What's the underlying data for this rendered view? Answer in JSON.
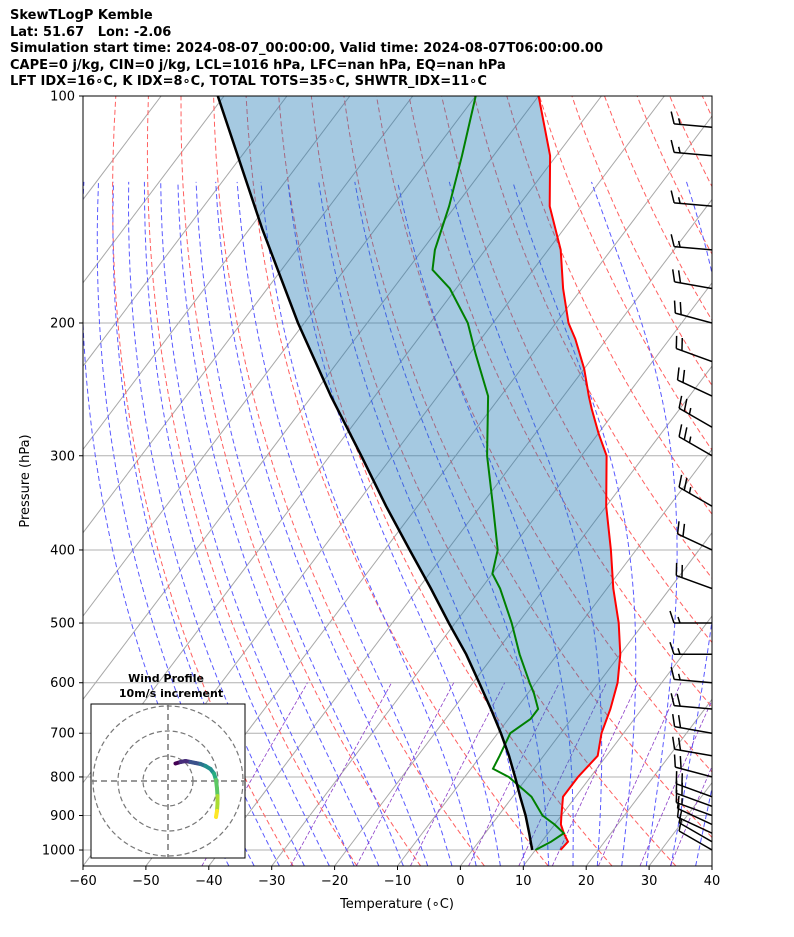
{
  "header": {
    "line1": "SkewTLogP Kemble",
    "line2": "Lat: 51.67   Lon: -2.06",
    "line3": "Simulation start time: 2024-08-07_00:00:00, Valid time: 2024-08-07T06:00:00.00",
    "line4": "CAPE=0 j/kg, CIN=0 j/kg, LCL=1016 hPa, LFC=nan hPa, EQ=nan hPa",
    "line5": "LFT IDX=16∘C, K IDX=8∘C, TOTAL TOTS=35∘C, SHWTR_IDX=11∘C"
  },
  "chart_data": {
    "type": "skew-t",
    "xlabel": "Temperature (∘C)",
    "ylabel": "Pressure (hPa)",
    "xlim": [
      -60,
      40
    ],
    "ylim": [
      1050,
      100
    ],
    "x_ticks": [
      -60,
      -50,
      -40,
      -30,
      -20,
      -10,
      0,
      10,
      20,
      30,
      40
    ],
    "x_tick_labels": [
      "−60",
      "−50",
      "−40",
      "−30",
      "−20",
      "−10",
      "0",
      "10",
      "20",
      "30",
      "40"
    ],
    "y_ticks": [
      1000,
      900,
      800,
      700,
      600,
      500,
      400,
      300,
      200,
      100
    ],
    "y_tick_labels": [
      "1000",
      "900",
      "800",
      "700",
      "600",
      "500",
      "400",
      "300",
      "200",
      "100"
    ],
    "series": [
      {
        "name": "Temperature",
        "color": "#ff0000",
        "points": [
          [
            1000,
            14
          ],
          [
            975,
            14.2
          ],
          [
            950,
            12.5
          ],
          [
            925,
            11
          ],
          [
            900,
            10
          ],
          [
            850,
            8
          ],
          [
            800,
            8
          ],
          [
            750,
            8.6
          ],
          [
            700,
            6.5
          ],
          [
            650,
            5
          ],
          [
            600,
            3
          ],
          [
            550,
            0
          ],
          [
            500,
            -4
          ],
          [
            450,
            -9
          ],
          [
            400,
            -14
          ],
          [
            350,
            -20
          ],
          [
            300,
            -26
          ],
          [
            280,
            -30
          ],
          [
            260,
            -34
          ],
          [
            250,
            -36
          ],
          [
            230,
            -40
          ],
          [
            210,
            -45
          ],
          [
            200,
            -48
          ],
          [
            180,
            -53
          ],
          [
            160,
            -58
          ],
          [
            140,
            -65
          ],
          [
            120,
            -71
          ],
          [
            100,
            -80
          ]
        ]
      },
      {
        "name": "Dewpoint",
        "color": "#008000",
        "points": [
          [
            1000,
            10
          ],
          [
            975,
            11.5
          ],
          [
            950,
            12.5
          ],
          [
            925,
            10
          ],
          [
            900,
            7
          ],
          [
            850,
            3
          ],
          [
            800,
            -3
          ],
          [
            780,
            -6.5
          ],
          [
            750,
            -7
          ],
          [
            700,
            -8
          ],
          [
            670,
            -6.5
          ],
          [
            650,
            -6.5
          ],
          [
            620,
            -9
          ],
          [
            600,
            -11
          ],
          [
            550,
            -16
          ],
          [
            500,
            -21
          ],
          [
            450,
            -27
          ],
          [
            430,
            -30
          ],
          [
            400,
            -32
          ],
          [
            350,
            -38
          ],
          [
            300,
            -45
          ],
          [
            250,
            -52
          ],
          [
            220,
            -59
          ],
          [
            200,
            -64
          ],
          [
            180,
            -71
          ],
          [
            170,
            -76
          ],
          [
            160,
            -78
          ],
          [
            140,
            -81
          ],
          [
            120,
            -85
          ],
          [
            100,
            -90
          ]
        ]
      },
      {
        "name": "Parcel",
        "color": "#000000",
        "points": [
          [
            1000,
            9.5
          ],
          [
            950,
            7
          ],
          [
            900,
            4.3
          ],
          [
            850,
            1.2
          ],
          [
            800,
            -2
          ],
          [
            750,
            -5.5
          ],
          [
            700,
            -9.5
          ],
          [
            650,
            -14
          ],
          [
            600,
            -19
          ],
          [
            550,
            -24.5
          ],
          [
            500,
            -31
          ],
          [
            450,
            -38
          ],
          [
            400,
            -46
          ],
          [
            350,
            -55
          ],
          [
            300,
            -65
          ],
          [
            250,
            -77
          ],
          [
            200,
            -91
          ],
          [
            150,
            -108
          ],
          [
            100,
            -131
          ]
        ]
      }
    ],
    "shaded_region": "CAPE/CIN area between parcel and temperature profile",
    "wind_barbs": {
      "pressures": [
        1000,
        975,
        950,
        925,
        900,
        875,
        850,
        800,
        750,
        700,
        650,
        600,
        550,
        500,
        450,
        400,
        350,
        300,
        275,
        250,
        225,
        200,
        180,
        160,
        140,
        120,
        110
      ],
      "speed_kt": [
        10,
        10,
        10,
        10,
        15,
        20,
        20,
        20,
        20,
        20,
        20,
        15,
        15,
        15,
        20,
        20,
        25,
        25,
        25,
        20,
        20,
        20,
        20,
        15,
        15,
        15,
        15
      ],
      "direction_deg": [
        300,
        300,
        295,
        295,
        290,
        290,
        290,
        285,
        280,
        280,
        275,
        275,
        270,
        270,
        290,
        295,
        300,
        300,
        300,
        295,
        290,
        285,
        280,
        275,
        275,
        275,
        275
      ]
    },
    "inset": {
      "title": "Wind Profile",
      "subtitle": "10m/s increment",
      "hodograph_uv": [
        [
          1.5,
          3.5
        ],
        [
          2.5,
          3.8
        ],
        [
          3.5,
          4.0
        ],
        [
          4.5,
          3.8
        ],
        [
          5.5,
          3.6
        ],
        [
          6.5,
          3.4
        ],
        [
          7.5,
          3.0
        ],
        [
          8.5,
          2.4
        ],
        [
          9.2,
          1.5
        ],
        [
          9.6,
          0.2
        ],
        [
          9.8,
          -1.5
        ],
        [
          9.9,
          -3.0
        ],
        [
          9.9,
          -4.5
        ],
        [
          9.8,
          -6.0
        ],
        [
          9.6,
          -7.2
        ]
      ]
    }
  }
}
